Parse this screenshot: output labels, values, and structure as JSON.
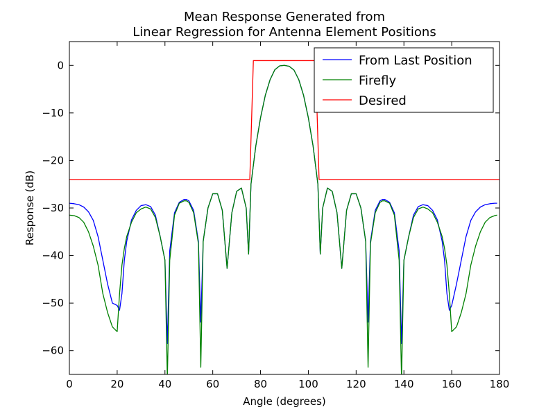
{
  "chart_data": {
    "type": "line",
    "title_lines": [
      "Mean Response Generated from",
      "Linear Regression for Antenna Element Positions"
    ],
    "xlabel": "Angle (degrees)",
    "ylabel": "Response (dB)",
    "xlim": [
      0,
      180
    ],
    "ylim": [
      -65,
      5
    ],
    "xticks": [
      0,
      20,
      40,
      60,
      80,
      100,
      120,
      140,
      160,
      180
    ],
    "yticks": [
      0,
      -10,
      -20,
      -30,
      -40,
      -50,
      -60
    ],
    "grid": false,
    "legend_position": "top-right",
    "series": [
      {
        "name": "From Last Position",
        "color": "#0000ff",
        "x": [
          0,
          2,
          4,
          6,
          8,
          10,
          12,
          14,
          16,
          18,
          20,
          21,
          22,
          23,
          24,
          26,
          28,
          30,
          32,
          34,
          36,
          38,
          40,
          41,
          42,
          44,
          46,
          48,
          49,
          50,
          52,
          54,
          55,
          56,
          58,
          60,
          62,
          64,
          66,
          68,
          70,
          72,
          74,
          75,
          76,
          78,
          80,
          82,
          84,
          86,
          88,
          90,
          92,
          94,
          96,
          98,
          100,
          102,
          104,
          105,
          106,
          108,
          110,
          112,
          114,
          116,
          118,
          120,
          122,
          124,
          125,
          126,
          128,
          130,
          131,
          132,
          134,
          136,
          138,
          139,
          140,
          142,
          144,
          146,
          148,
          150,
          152,
          154,
          156,
          157,
          158,
          159,
          160,
          162,
          164,
          166,
          168,
          170,
          172,
          174,
          176,
          178,
          179
        ],
        "y": [
          -29,
          -29.1,
          -29.3,
          -29.8,
          -30.8,
          -32.6,
          -36,
          -41,
          -46,
          -50,
          -50.5,
          -51.5,
          -48,
          -41,
          -37,
          -32.5,
          -30.5,
          -29.5,
          -29.3,
          -29.7,
          -31.5,
          -36,
          -41,
          -58.5,
          -39,
          -31,
          -28.8,
          -28.2,
          -28.2,
          -28.5,
          -30.5,
          -37,
          -54,
          -37,
          -30,
          -27,
          -27,
          -30.5,
          -42.7,
          -31,
          -26.5,
          -25.8,
          -30,
          -39.7,
          -25,
          -17,
          -11,
          -6.3,
          -3,
          -0.9,
          -0.1,
          0,
          -0.2,
          -1,
          -3,
          -6.3,
          -11,
          -17,
          -25,
          -39.7,
          -30,
          -25.8,
          -26.5,
          -31,
          -42.7,
          -30.5,
          -27,
          -27,
          -30,
          -37,
          -54,
          -37,
          -30.5,
          -28.5,
          -28.2,
          -28.2,
          -28.8,
          -31,
          -39,
          -58.5,
          -41,
          -36,
          -31.5,
          -29.7,
          -29.3,
          -29.5,
          -30.5,
          -32.5,
          -37,
          -41,
          -48,
          -51.5,
          -50.5,
          -46,
          -41,
          -36,
          -32.6,
          -30.8,
          -29.8,
          -29.3,
          -29.1,
          -29,
          -29
        ]
      },
      {
        "name": "Firefly",
        "color": "#008000",
        "x": [
          0,
          2,
          4,
          6,
          8,
          10,
          12,
          14,
          16,
          18,
          20,
          21,
          22,
          23,
          24,
          26,
          28,
          30,
          32,
          34,
          36,
          38,
          40,
          41,
          42,
          44,
          46,
          48,
          49,
          50,
          52,
          54,
          55,
          56,
          58,
          60,
          62,
          64,
          66,
          68,
          70,
          72,
          74,
          75,
          76,
          78,
          80,
          82,
          84,
          86,
          88,
          90,
          92,
          94,
          96,
          98,
          100,
          102,
          104,
          105,
          106,
          108,
          110,
          112,
          114,
          116,
          118,
          120,
          122,
          124,
          125,
          126,
          128,
          130,
          131,
          132,
          134,
          136,
          138,
          139,
          140,
          142,
          144,
          146,
          148,
          150,
          152,
          154,
          156,
          157,
          158,
          159,
          160,
          162,
          164,
          166,
          168,
          170,
          172,
          174,
          176,
          178,
          179
        ],
        "y": [
          -31.5,
          -31.6,
          -32,
          -33,
          -35,
          -38,
          -42,
          -48,
          -52,
          -55,
          -56,
          -48,
          -42,
          -38.5,
          -36,
          -33,
          -31,
          -30.2,
          -29.8,
          -30.2,
          -32,
          -36,
          -41,
          -66,
          -41,
          -31.5,
          -29,
          -28.5,
          -28.5,
          -28.8,
          -31,
          -37.5,
          -63.5,
          -37,
          -30,
          -27,
          -27,
          -30.5,
          -42.7,
          -31,
          -26.5,
          -25.8,
          -30,
          -39.7,
          -25,
          -17,
          -11,
          -6.3,
          -3,
          -0.9,
          -0.1,
          0,
          -0.2,
          -1,
          -3,
          -6.3,
          -11,
          -17,
          -25,
          -39.7,
          -30,
          -25.8,
          -26.5,
          -31,
          -42.7,
          -30.5,
          -27,
          -27,
          -30,
          -37,
          -63.5,
          -37.5,
          -31,
          -28.8,
          -28.5,
          -28.5,
          -29,
          -31.5,
          -41,
          -66,
          -41,
          -36,
          -32,
          -30.2,
          -29.8,
          -30.2,
          -31,
          -33,
          -36,
          -38.5,
          -42,
          -48,
          -56,
          -55,
          -52,
          -48,
          -42,
          -38,
          -35,
          -33,
          -32,
          -31.6,
          -31.5
        ]
      },
      {
        "name": "Desired",
        "color": "#ff0000",
        "x": [
          0,
          75.5,
          77,
          103,
          104.5,
          180
        ],
        "y": [
          -24,
          -24,
          1,
          1,
          -24,
          -24
        ]
      }
    ]
  }
}
